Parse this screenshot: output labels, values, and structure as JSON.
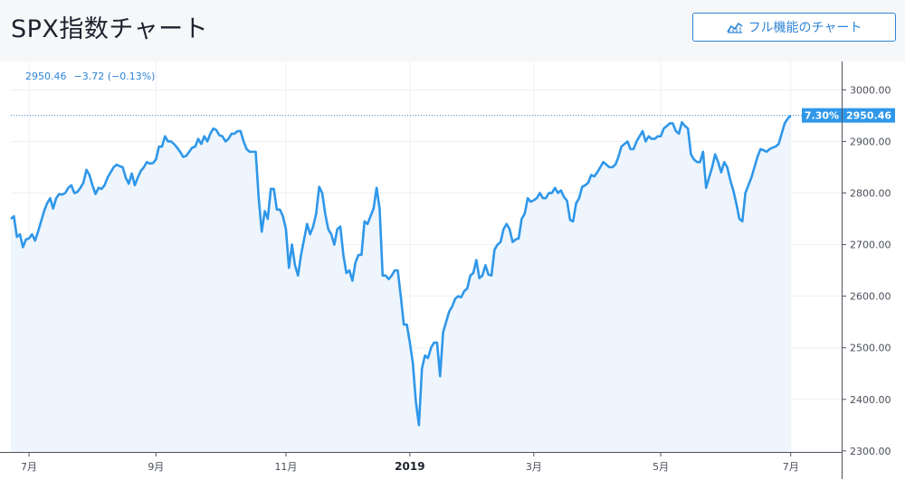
{
  "header": {
    "title": "SPX指数チャート",
    "button_label": "フル機能のチャート",
    "button_icon": "chart-line-icon"
  },
  "quote": {
    "last": "2950.46",
    "change": "−3.72 (−0.13%)"
  },
  "colors": {
    "line": "#2f97e9",
    "accent": "#2e84d6",
    "grid": "#eef0f3",
    "axis_text": "#4a4f5a"
  },
  "chart_data": {
    "type": "area",
    "x_ticks": [
      {
        "label": "7月",
        "index": 6,
        "bold": false
      },
      {
        "label": "9月",
        "index": 48,
        "bold": false
      },
      {
        "label": "11月",
        "index": 91,
        "bold": false
      },
      {
        "label": "2019",
        "index": 132,
        "bold": true
      },
      {
        "label": "3月",
        "index": 173,
        "bold": false
      },
      {
        "label": "5月",
        "index": 215,
        "bold": false
      },
      {
        "label": "7月",
        "index": 258,
        "bold": false
      }
    ],
    "y_ticks": [
      "2300.00",
      "2400.00",
      "2500.00",
      "2600.00",
      "2700.00",
      "2800.00",
      "2900.00",
      "3000.00"
    ],
    "ylim": [
      2298,
      3055
    ],
    "grid": true,
    "last_value_label": "2950.46",
    "last_percent_label": "7.30%",
    "last_value": 2950.46,
    "series": [
      {
        "values": [
          2750,
          2755,
          2715,
          2720,
          2695,
          2710,
          2712,
          2720,
          2708,
          2725,
          2745,
          2765,
          2780,
          2790,
          2770,
          2790,
          2798,
          2797,
          2800,
          2810,
          2815,
          2800,
          2802,
          2810,
          2820,
          2845,
          2835,
          2815,
          2798,
          2810,
          2808,
          2815,
          2830,
          2840,
          2850,
          2855,
          2852,
          2850,
          2830,
          2818,
          2838,
          2815,
          2830,
          2843,
          2850,
          2860,
          2857,
          2858,
          2865,
          2890,
          2890,
          2910,
          2900,
          2900,
          2895,
          2888,
          2880,
          2870,
          2872,
          2880,
          2888,
          2890,
          2905,
          2895,
          2910,
          2900,
          2915,
          2925,
          2922,
          2912,
          2910,
          2900,
          2905,
          2915,
          2915,
          2920,
          2920,
          2900,
          2885,
          2880,
          2880,
          2880,
          2790,
          2725,
          2765,
          2750,
          2808,
          2808,
          2768,
          2768,
          2755,
          2730,
          2655,
          2700,
          2660,
          2640,
          2680,
          2710,
          2740,
          2720,
          2735,
          2760,
          2812,
          2800,
          2760,
          2730,
          2720,
          2700,
          2730,
          2735,
          2680,
          2645,
          2650,
          2630,
          2665,
          2680,
          2680,
          2745,
          2740,
          2755,
          2770,
          2810,
          2770,
          2640,
          2640,
          2633,
          2640,
          2650,
          2650,
          2600,
          2545,
          2545,
          2510,
          2470,
          2395,
          2350,
          2460,
          2485,
          2480,
          2500,
          2510,
          2510,
          2445,
          2530,
          2550,
          2570,
          2580,
          2595,
          2600,
          2598,
          2610,
          2615,
          2640,
          2645,
          2670,
          2635,
          2640,
          2660,
          2642,
          2640,
          2690,
          2700,
          2705,
          2730,
          2740,
          2730,
          2705,
          2710,
          2712,
          2750,
          2760,
          2790,
          2783,
          2786,
          2790,
          2800,
          2790,
          2790,
          2800,
          2800,
          2810,
          2800,
          2805,
          2792,
          2785,
          2748,
          2745,
          2780,
          2790,
          2812,
          2815,
          2820,
          2835,
          2832,
          2840,
          2850,
          2860,
          2855,
          2850,
          2850,
          2855,
          2870,
          2890,
          2895,
          2900,
          2885,
          2885,
          2900,
          2910,
          2920,
          2900,
          2910,
          2905,
          2905,
          2910,
          2910,
          2925,
          2930,
          2935,
          2935,
          2920,
          2915,
          2937,
          2930,
          2925,
          2875,
          2865,
          2860,
          2860,
          2880,
          2810,
          2830,
          2850,
          2875,
          2860,
          2840,
          2860,
          2850,
          2825,
          2805,
          2780,
          2750,
          2745,
          2800,
          2815,
          2830,
          2850,
          2870,
          2885,
          2883,
          2880,
          2885,
          2888,
          2890,
          2895,
          2915,
          2935,
          2944,
          2950.46
        ]
      }
    ]
  }
}
